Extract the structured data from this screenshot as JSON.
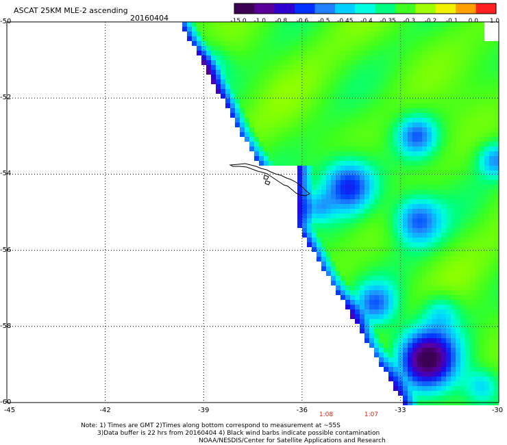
{
  "header": {
    "title": "ASCAT 25KM MLE-2 ascending",
    "date": "20160404"
  },
  "colorbar": {
    "labels": [
      "-15.0",
      "-1.0",
      "-0.8",
      "-0.6",
      "-0.5",
      "-0.45",
      "-0.4",
      "-0.35",
      "-0.3",
      "-0.2",
      "-0.1",
      "0.0",
      "1.0"
    ],
    "colors": [
      "#3c0052",
      "#5a0098",
      "#3000d0",
      "#0030ff",
      "#2080ff",
      "#00d0ff",
      "#00ffe0",
      "#00ff80",
      "#40ff20",
      "#a0ff00",
      "#f0f000",
      "#ffa000",
      "#ff2020"
    ]
  },
  "map": {
    "lat_labels": [
      "-50",
      "-52",
      "-54",
      "-56",
      "-58",
      "-60"
    ],
    "lon_labels": [
      "-45",
      "-42",
      "-39",
      "-36",
      "-33",
      "-30"
    ],
    "time_labels": [
      "1:08",
      "1:07"
    ],
    "lat_range": [
      -60,
      -50
    ],
    "lon_range": [
      -45,
      -30
    ]
  },
  "notes": [
    "Note: 1) Times are GMT 2)Times along bottom correspond to measurement at ~55S",
    "3)Data buffer is 22 hrs from 20160404 4) Black wind barbs indicate possible contamination",
    "NOAA/NESDIS/Center for Satellite Applications and Research"
  ]
}
